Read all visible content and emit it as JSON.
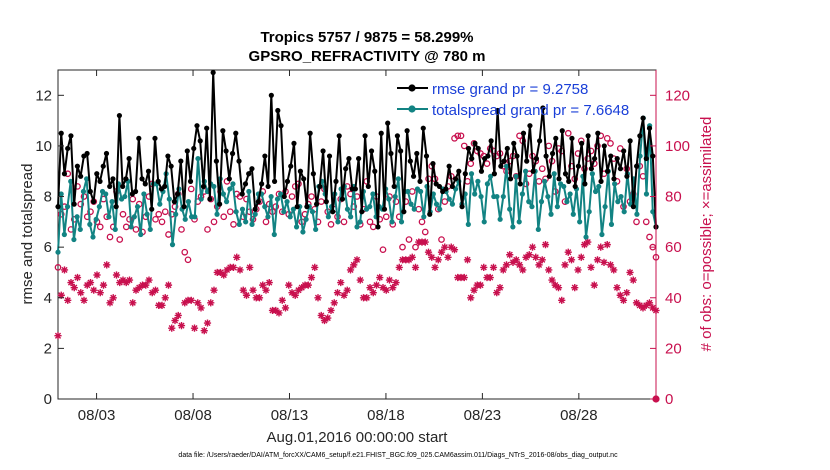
{
  "chart_data": {
    "type": "line",
    "title": "Tropics 5757 / 9875 = 58.299%",
    "subtitle": "GPSRO_REFRACTIVITY @ 780 m",
    "xlabel": "Aug.01,2016 00:00:00 start",
    "ylabel_left": "rmse and totalspread",
    "ylabel_right": "# of obs: o=possible; ×=assimilated",
    "footer": "data file: /Users/raeder/DAI/ATM_forcXX/CAM6_setup/f.e21.FHIST_BGC.f09_025.CAM6assim.011/Diags_NTrS_2016-08/obs_diag_output.nc",
    "x_ticks": [
      {
        "day": 3,
        "label": "08/03"
      },
      {
        "day": 8,
        "label": "08/08"
      },
      {
        "day": 13,
        "label": "08/13"
      },
      {
        "day": 18,
        "label": "08/18"
      },
      {
        "day": 23,
        "label": "08/23"
      },
      {
        "day": 28,
        "label": "08/28"
      }
    ],
    "xlim": [
      1,
      32
    ],
    "ylim_left": [
      0,
      13
    ],
    "yticks_left": [
      "0",
      "2",
      "4",
      "6",
      "8",
      "10",
      "12"
    ],
    "ylim_right": [
      0,
      130
    ],
    "yticks_right": [
      "0",
      "20",
      "40",
      "60",
      "80",
      "100",
      "120"
    ],
    "grid": false,
    "legend_position": "top-right",
    "series": [
      {
        "name": "rmse grand pr = 9.2758",
        "axis": "left",
        "color": "#000000",
        "marker": "circle",
        "values": [
          7.6,
          10.5,
          8.9,
          9.9,
          10.4,
          7.7,
          9.2,
          8.8,
          9.6,
          9.7,
          8.2,
          7.8,
          8.9,
          8.6,
          9.2,
          9.7,
          8.4,
          8.7,
          7.6,
          11.2,
          8.4,
          8.7,
          9.5,
          8.1,
          8.2,
          10.3,
          8.7,
          8.5,
          9.0,
          7.5,
          10.3,
          8.6,
          8.3,
          8.4,
          9.6,
          9.2,
          7.8,
          8.1,
          9.4,
          7.6,
          9.8,
          8.6,
          9.9,
          10.8,
          10.2,
          8.4,
          10.7,
          7.9,
          12.9,
          9.4,
          7.7,
          10.6,
          9.8,
          8.7,
          9.7,
          10.5,
          9.4,
          8.1,
          8.5,
          8.9,
          9.1,
          7.5,
          7.8,
          8.5,
          9.6,
          8.4,
          12.0,
          8.6,
          11.4,
          10.8,
          8.0,
          8.6,
          9.2,
          10.1,
          7.6,
          9.0,
          8.7,
          7.6,
          10.5,
          8.9,
          7.7,
          8.4,
          9.8,
          7.8,
          9.6,
          7.4,
          8.6,
          10.4,
          7.9,
          9.1,
          9.5,
          8.3,
          8.3,
          9.5,
          7.4,
          10.4,
          8.4,
          9.8,
          9.0,
          6.8,
          10.5,
          7.5,
          10.9,
          9.7,
          8.4,
          10.4,
          9.8,
          7.4,
          10.6,
          9.4,
          8.8,
          9.7,
          8.6,
          10.7,
          9.6,
          7.3,
          9.3,
          8.5,
          8.4,
          8.2,
          8.3,
          9.2,
          8.4,
          8.7,
          9.0,
          7.6,
          8.9,
          9.9,
          9.5,
          10.1,
          9.9,
          9.0,
          9.5,
          9.6,
          10.2,
          8.9,
          11.4,
          9.2,
          9.4,
          9.9,
          8.7,
          10.1,
          9.6,
          8.5,
          10.5,
          9.4,
          10.8,
          9.0,
          9.5,
          10.2,
          11.5,
          9.6,
          8.8,
          9.7,
          10.3,
          8.7,
          10.6,
          8.9,
          8.6,
          10.3,
          8.4,
          9.2,
          10.1,
          8.5,
          10.4,
          9.1,
          9.5,
          10.5,
          8.6,
          10.0,
          9.0,
          9.6,
          8.7,
          9.5,
          9.1,
          9.8,
          8.8,
          10.2,
          7.6,
          9.2,
          10.4,
          11.1,
          9.5,
          10.7,
          9.6,
          6.8
        ]
      },
      {
        "name": "totalspread grand pr = 7.6648",
        "axis": "left",
        "color": "#128383",
        "marker": "circle",
        "values": [
          5.8,
          8.1,
          6.5,
          7.6,
          8.6,
          6.3,
          7.2,
          6.7,
          8.2,
          8.7,
          6.9,
          6.4,
          7.1,
          7.6,
          8.2,
          8.1,
          7.2,
          7.8,
          6.7,
          8.5,
          7.9,
          8.0,
          8.6,
          6.8,
          7.2,
          7.6,
          6.5,
          8.1,
          7.3,
          6.7,
          8.5,
          8.5,
          7.7,
          8.2,
          8.9,
          7.9,
          6.1,
          7.3,
          8.3,
          7.5,
          7.1,
          7.8,
          7.2,
          7.2,
          9.5,
          7.9,
          8.6,
          8.2,
          8.5,
          8.4,
          7.3,
          8.7,
          8.1,
          7.8,
          8.3,
          8.5,
          7.4,
          6.9,
          7.5,
          7.0,
          8.2,
          6.9,
          7.3,
          8.1,
          8.1,
          7.6,
          7.2,
          8.0,
          6.5,
          7.9,
          8.1,
          7.4,
          7.8,
          7.2,
          7.5,
          6.8,
          7.6,
          6.6,
          7.1,
          7.6,
          7.4,
          6.7,
          8.4,
          8.6,
          8.1,
          7.2,
          7.6,
          8.1,
          7.0,
          8.3,
          8.4,
          7.5,
          7.2,
          8.4,
          6.8,
          7.0,
          8.2,
          7.5,
          7.6,
          8.1,
          7.2,
          7.6,
          7.5,
          8.3,
          7.9,
          7.0,
          8.0,
          8.7,
          7.0,
          8.2,
          8.2,
          7.7,
          7.5,
          8.3,
          8.2,
          7.2,
          8.4,
          7.4,
          8.1,
          7.7,
          7.5,
          8.3,
          8.2,
          7.9,
          7.7,
          8.3,
          8.6,
          7.7,
          8.1,
          6.9,
          8.9,
          8.1,
          8.6,
          8.0,
          7.0,
          8.5,
          8.8,
          8.0,
          8.0,
          7.1,
          8.0,
          9.2,
          7.5,
          6.8,
          8.8,
          7.0,
          8.1,
          9.0,
          7.8,
          7.6,
          9.0,
          6.7,
          7.8,
          8.6,
          8.0,
          7.3,
          8.9,
          7.6,
          8.5,
          8.4,
          7.8,
          8.1,
          7.3,
          8.3,
          7.0,
          8.8,
          6.4,
          7.4,
          8.9,
          8.2,
          8.4,
          6.5,
          7.6,
          9.0,
          6.9,
          8.5,
          7.8,
          8.0,
          7.4,
          8.9,
          7.7,
          8.7,
          7.3,
          9.6,
          11.1,
          8.1,
          10.8,
          7.4,
          6.8
        ]
      },
      {
        "name": "possible obs",
        "axis": "right",
        "color": "#c8104e",
        "marker": "o",
        "values": [
          52,
          73,
          76,
          89,
          67,
          71,
          84,
          77,
          80,
          72,
          74,
          78,
          70,
          68,
          79,
          72,
          64,
          68,
          82,
          63,
          73,
          68,
          71,
          79,
          67,
          77,
          66,
          72,
          80,
          85,
          71,
          73,
          70,
          74,
          65,
          73,
          76,
          81,
          67,
          58,
          55,
          83,
          71,
          78,
          80,
          82,
          67,
          79,
          70,
          76,
          82,
          72,
          86,
          74,
          69,
          81,
          80,
          72,
          79,
          74,
          71,
          75,
          78,
          82,
          70,
          77,
          74,
          76,
          81,
          74,
          82,
          73,
          80,
          84,
          85,
          70,
          73,
          77,
          80,
          75,
          70,
          78,
          83,
          74,
          69,
          75,
          72,
          79,
          70,
          84,
          81,
          76,
          80,
          69,
          75,
          86,
          70,
          68,
          80,
          71,
          59,
          72,
          80,
          69,
          78,
          72,
          60,
          78,
          63,
          82,
          60,
          75,
          70,
          66,
          87,
          92,
          87,
          75,
          63,
          78,
          84,
          88,
          103,
          104,
          104,
          100,
          86,
          93,
          101,
          98,
          97,
          96,
          93,
          99,
          98,
          96,
          97,
          92,
          90,
          94,
          96,
          88,
          104,
          102,
          85,
          89,
          96,
          94,
          86,
          91,
          87,
          100,
          94,
          82,
          99,
          98,
          78,
          105,
          92,
          87,
          97,
          102,
          91,
          95,
          98,
          93,
          100,
          104,
          89,
          103,
          101,
          95,
          86,
          99,
          76,
          91,
          78,
          81,
          70,
          92,
          88,
          70,
          64,
          60,
          56
        ]
      },
      {
        "name": "assimilated obs",
        "axis": "right",
        "color": "#c8104e",
        "marker": "x",
        "values": [
          25,
          41,
          51,
          39,
          46,
          44,
          48,
          42,
          39,
          45,
          46,
          43,
          49,
          42,
          45,
          53,
          38,
          40,
          49,
          46,
          47,
          46,
          47,
          38,
          43,
          44,
          45,
          45,
          47,
          42,
          43,
          37,
          37,
          40,
          45,
          28,
          31,
          33,
          29,
          38,
          39,
          39,
          28,
          38,
          36,
          27,
          30,
          38,
          43,
          50,
          50,
          49,
          51,
          52,
          52,
          56,
          51,
          43,
          41,
          52,
          43,
          40,
          40,
          45,
          43,
          46,
          35,
          35,
          34,
          39,
          36,
          45,
          42,
          41,
          43,
          44,
          45,
          45,
          48,
          52,
          40,
          33,
          31,
          32,
          35,
          38,
          42,
          46,
          41,
          43,
          51,
          53,
          55,
          47,
          40,
          40,
          44,
          42,
          45,
          48,
          44,
          43,
          47,
          44,
          46,
          52,
          55,
          55,
          55,
          56,
          52,
          62,
          62,
          62,
          58,
          56,
          52,
          55,
          58,
          60,
          56,
          60,
          59,
          48,
          48,
          48,
          55,
          40,
          43,
          45,
          45,
          52,
          48,
          48,
          52,
          42,
          44,
          51,
          53,
          57,
          54,
          55,
          53,
          51,
          56,
          57,
          60,
          56,
          53,
          55,
          61,
          51,
          47,
          45,
          44,
          39,
          53,
          58,
          55,
          44,
          51,
          56,
          61,
          62,
          52,
          45,
          55,
          60,
          54,
          61,
          53,
          51,
          44,
          41,
          39,
          42,
          50,
          47,
          38,
          37,
          36,
          37,
          38,
          36,
          35
        ]
      }
    ]
  }
}
